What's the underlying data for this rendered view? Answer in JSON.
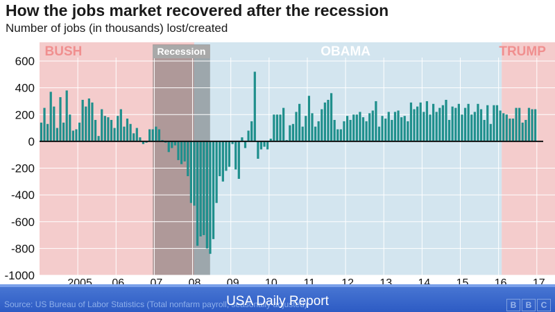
{
  "title": "How the jobs market recovered after the recession",
  "subtitle": "Number of jobs (in thousands) lost/created",
  "footer": {
    "source": "Source: US Bureau of Labor Statistics (Total nonfarm payroll, seasonally adjusted)",
    "brand": "USA Daily Report",
    "logo_letters": [
      "B",
      "B",
      "C"
    ]
  },
  "colors": {
    "bar": "#1f8f8c",
    "bush_band": "#f4cccc",
    "obama_band": "#d3e5ef",
    "trump_band": "#f4cccc",
    "recession_band": "rgba(90,90,90,0.45)",
    "zero_line": "#111111",
    "grid": "#ffffff"
  },
  "chart_data": {
    "type": "bar",
    "title": "How the jobs market recovered after the recession",
    "subtitle": "Number of jobs (in thousands) lost/created",
    "ylim": [
      -1000,
      600
    ],
    "yticks": [
      600,
      400,
      200,
      0,
      -200,
      -400,
      -600,
      -800,
      -1000
    ],
    "xticks": [
      {
        "label": "2005",
        "month_index": 12
      },
      {
        "label": "06",
        "month_index": 24
      },
      {
        "label": "07",
        "month_index": 36
      },
      {
        "label": "08",
        "month_index": 48
      },
      {
        "label": "09",
        "month_index": 60
      },
      {
        "label": "10",
        "month_index": 72
      },
      {
        "label": "11",
        "month_index": 84
      },
      {
        "label": "12",
        "month_index": 96
      },
      {
        "label": "13",
        "month_index": 108
      },
      {
        "label": "14",
        "month_index": 120
      },
      {
        "label": "15",
        "month_index": 132
      },
      {
        "label": "16",
        "month_index": 144
      },
      {
        "label": "17",
        "month_index": 156
      }
    ],
    "x_start": "2004-01",
    "x_end": "2017-03",
    "grid": true,
    "periods": [
      {
        "label": "BUSH",
        "start": 0,
        "end": 145,
        "color_key": "bush_band"
      },
      {
        "label": "OBAMA",
        "start": 48.5,
        "end": 145,
        "color_key": "obama_band"
      },
      {
        "label": "TRUMP",
        "start": 145,
        "end": 158,
        "color_key": "trump_band"
      },
      {
        "label": "Recession",
        "start": 35.5,
        "end": 53.5,
        "color_key": "recession_band"
      }
    ],
    "series": [
      {
        "values": [
          140,
          250,
          130,
          370,
          260,
          100,
          330,
          140,
          380,
          200,
          80,
          90,
          140,
          310,
          260,
          320,
          290,
          160,
          40,
          240,
          190,
          180,
          160,
          100,
          190,
          240,
          110,
          170,
          130,
          60,
          100,
          30,
          -20,
          -10,
          90,
          90,
          110,
          90,
          10,
          -10,
          -80,
          -50,
          -30,
          -140,
          -170,
          -150,
          -260,
          -460,
          -480,
          -780,
          -710,
          -700,
          -800,
          -840,
          -730,
          -460,
          -260,
          -300,
          -220,
          -190,
          -20,
          -210,
          -280,
          30,
          -50,
          80,
          150,
          520,
          -130,
          -60,
          -40,
          -60,
          20,
          200,
          200,
          200,
          250,
          10,
          120,
          130,
          220,
          280,
          110,
          190,
          340,
          210,
          110,
          150,
          240,
          290,
          310,
          360,
          160,
          90,
          90,
          150,
          190,
          160,
          200,
          200,
          220,
          180,
          150,
          210,
          230,
          300,
          110,
          190,
          170,
          220,
          160,
          220,
          230,
          180,
          190,
          150,
          290,
          240,
          260,
          290,
          220,
          300,
          200,
          280,
          220,
          250,
          270,
          310,
          160,
          260,
          250,
          280,
          200,
          250,
          280,
          200,
          220,
          280,
          240,
          160,
          270,
          130,
          270,
          270,
          230,
          210,
          200,
          170,
          170,
          250,
          250,
          140,
          160,
          250,
          240,
          240
        ]
      }
    ]
  }
}
